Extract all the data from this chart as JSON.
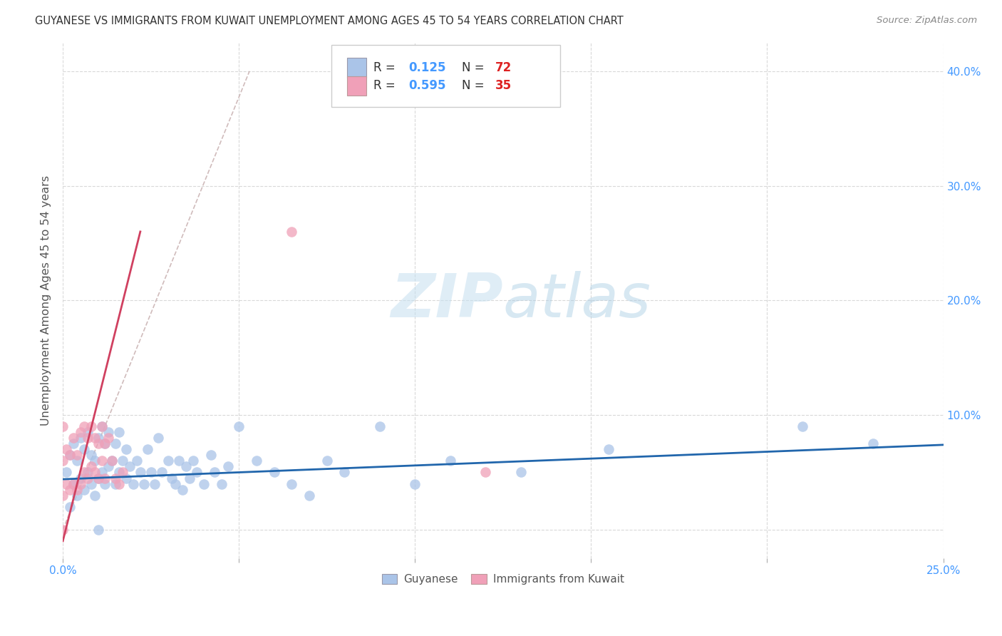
{
  "title": "GUYANESE VS IMMIGRANTS FROM KUWAIT UNEMPLOYMENT AMONG AGES 45 TO 54 YEARS CORRELATION CHART",
  "source": "Source: ZipAtlas.com",
  "ylabel": "Unemployment Among Ages 45 to 54 years",
  "xlim": [
    0.0,
    0.25
  ],
  "ylim": [
    -0.025,
    0.425
  ],
  "xticks": [
    0.0,
    0.05,
    0.1,
    0.15,
    0.2,
    0.25
  ],
  "yticks": [
    0.0,
    0.1,
    0.2,
    0.3,
    0.4
  ],
  "xticklabels": [
    "0.0%",
    "",
    "",
    "",
    "",
    "25.0%"
  ],
  "yticklabels_right": [
    "",
    "10.0%",
    "20.0%",
    "30.0%",
    "40.0%"
  ],
  "blue_R": "0.125",
  "blue_N": "72",
  "pink_R": "0.595",
  "pink_N": "35",
  "blue_scatter_color": "#aac4e8",
  "pink_scatter_color": "#f0a0b8",
  "blue_line_color": "#2166ac",
  "pink_line_color": "#d04060",
  "diagonal_color": "#c8b0b0",
  "watermark_color": "#c8dff0",
  "legend_R_color": "#4499ff",
  "legend_N_color": "#dd2222",
  "guyanese_x": [
    0.001,
    0.002,
    0.002,
    0.003,
    0.003,
    0.004,
    0.004,
    0.005,
    0.005,
    0.006,
    0.006,
    0.007,
    0.007,
    0.008,
    0.008,
    0.009,
    0.009,
    0.01,
    0.01,
    0.01,
    0.011,
    0.011,
    0.012,
    0.012,
    0.013,
    0.013,
    0.014,
    0.015,
    0.015,
    0.016,
    0.016,
    0.017,
    0.018,
    0.018,
    0.019,
    0.02,
    0.021,
    0.022,
    0.023,
    0.024,
    0.025,
    0.026,
    0.027,
    0.028,
    0.03,
    0.031,
    0.032,
    0.033,
    0.034,
    0.035,
    0.036,
    0.037,
    0.038,
    0.04,
    0.042,
    0.043,
    0.045,
    0.047,
    0.05,
    0.055,
    0.06,
    0.065,
    0.07,
    0.075,
    0.08,
    0.09,
    0.1,
    0.11,
    0.13,
    0.155,
    0.21,
    0.23
  ],
  "guyanese_y": [
    0.05,
    0.02,
    0.065,
    0.04,
    0.075,
    0.03,
    0.06,
    0.045,
    0.08,
    0.035,
    0.07,
    0.05,
    0.085,
    0.04,
    0.065,
    0.03,
    0.06,
    0.0,
    0.045,
    0.08,
    0.05,
    0.09,
    0.04,
    0.075,
    0.055,
    0.085,
    0.06,
    0.04,
    0.075,
    0.05,
    0.085,
    0.06,
    0.045,
    0.07,
    0.055,
    0.04,
    0.06,
    0.05,
    0.04,
    0.07,
    0.05,
    0.04,
    0.08,
    0.05,
    0.06,
    0.045,
    0.04,
    0.06,
    0.035,
    0.055,
    0.045,
    0.06,
    0.05,
    0.04,
    0.065,
    0.05,
    0.04,
    0.055,
    0.09,
    0.06,
    0.05,
    0.04,
    0.03,
    0.06,
    0.05,
    0.09,
    0.04,
    0.06,
    0.05,
    0.07,
    0.09,
    0.075
  ],
  "kuwait_x": [
    0.0,
    0.0,
    0.0,
    0.0,
    0.001,
    0.001,
    0.002,
    0.002,
    0.003,
    0.003,
    0.004,
    0.004,
    0.005,
    0.005,
    0.006,
    0.006,
    0.007,
    0.007,
    0.008,
    0.008,
    0.009,
    0.009,
    0.01,
    0.01,
    0.011,
    0.011,
    0.012,
    0.012,
    0.013,
    0.014,
    0.015,
    0.016,
    0.017,
    0.065,
    0.12
  ],
  "kuwait_y": [
    0.0,
    0.03,
    0.06,
    0.09,
    0.04,
    0.07,
    0.035,
    0.065,
    0.04,
    0.08,
    0.035,
    0.065,
    0.04,
    0.085,
    0.05,
    0.09,
    0.045,
    0.08,
    0.055,
    0.09,
    0.05,
    0.08,
    0.045,
    0.075,
    0.06,
    0.09,
    0.045,
    0.075,
    0.08,
    0.06,
    0.045,
    0.04,
    0.05,
    0.26,
    0.05
  ],
  "blue_line_x": [
    0.0,
    0.25
  ],
  "blue_line_y": [
    0.044,
    0.074
  ],
  "pink_line_x": [
    0.0,
    0.022
  ],
  "pink_line_y": [
    -0.01,
    0.26
  ],
  "diag_line_x": [
    0.0,
    0.053
  ],
  "diag_line_y": [
    0.0,
    0.4
  ]
}
